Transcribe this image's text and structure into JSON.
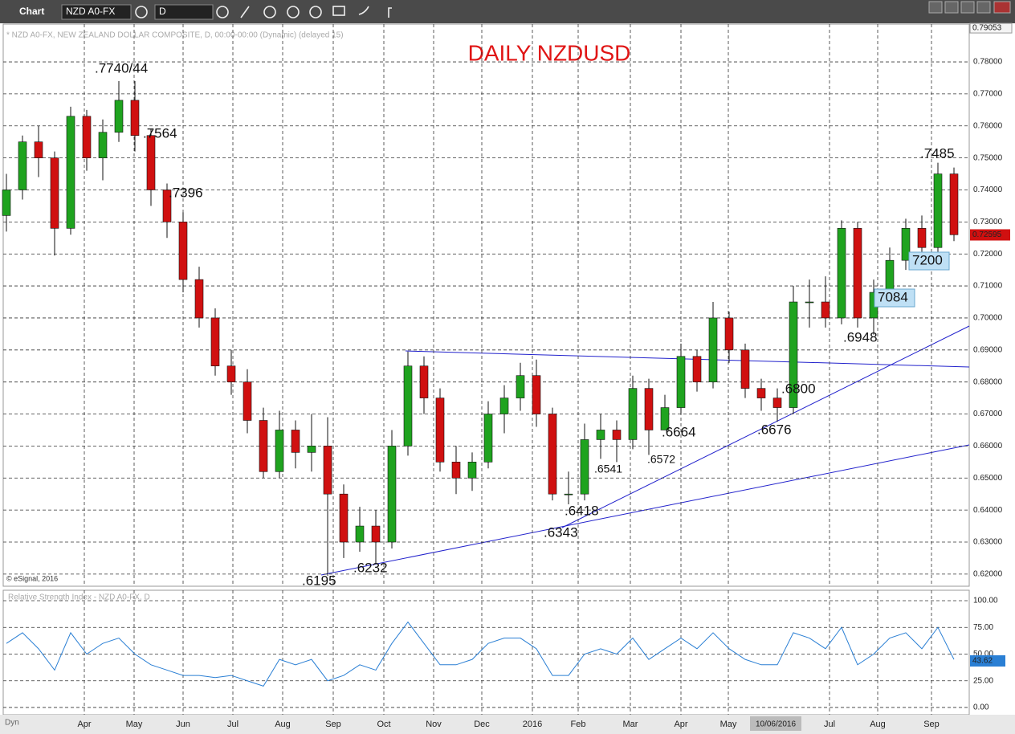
{
  "toolbar": {
    "title": "Chart",
    "symbol": "NZD A0-FX",
    "interval": "D"
  },
  "chart_data": [
    {
      "type": "candlestick",
      "title": "DAILY NZDUSD",
      "subtitle": "* NZD A0-FX, NEW ZEALAND DOLLAR COMPOSITE, D, 00:00-00:00 (Dynamic) (delayed 15)",
      "credit": "© eSignal, 2016",
      "up_color": "#1fa31f",
      "down_color": "#d01010",
      "candles": [
        [
          0.732,
          0.745,
          0.727,
          0.74
        ],
        [
          0.74,
          0.757,
          0.737,
          0.755
        ],
        [
          0.755,
          0.76,
          0.744,
          0.75
        ],
        [
          0.75,
          0.752,
          0.7195,
          0.728
        ],
        [
          0.728,
          0.766,
          0.726,
          0.763
        ],
        [
          0.763,
          0.765,
          0.746,
          0.75
        ],
        [
          0.75,
          0.762,
          0.743,
          0.758
        ],
        [
          0.758,
          0.774,
          0.755,
          0.768
        ],
        [
          0.768,
          0.774,
          0.752,
          0.757
        ],
        [
          0.757,
          0.759,
          0.735,
          0.74
        ],
        [
          0.74,
          0.742,
          0.725,
          0.73
        ],
        [
          0.73,
          0.733,
          0.708,
          0.712
        ],
        [
          0.712,
          0.716,
          0.697,
          0.7
        ],
        [
          0.7,
          0.703,
          0.682,
          0.685
        ],
        [
          0.685,
          0.69,
          0.676,
          0.68
        ],
        [
          0.68,
          0.684,
          0.664,
          0.668
        ],
        [
          0.668,
          0.672,
          0.65,
          0.652
        ],
        [
          0.652,
          0.671,
          0.65,
          0.665
        ],
        [
          0.665,
          0.668,
          0.653,
          0.658
        ],
        [
          0.658,
          0.67,
          0.652,
          0.66
        ],
        [
          0.66,
          0.669,
          0.6195,
          0.645
        ],
        [
          0.645,
          0.648,
          0.625,
          0.63
        ],
        [
          0.63,
          0.641,
          0.627,
          0.635
        ],
        [
          0.635,
          0.64,
          0.6232,
          0.63
        ],
        [
          0.63,
          0.665,
          0.628,
          0.66
        ],
        [
          0.66,
          0.6895,
          0.657,
          0.685
        ],
        [
          0.685,
          0.688,
          0.67,
          0.675
        ],
        [
          0.675,
          0.678,
          0.652,
          0.655
        ],
        [
          0.655,
          0.66,
          0.645,
          0.65
        ],
        [
          0.65,
          0.658,
          0.646,
          0.655
        ],
        [
          0.655,
          0.674,
          0.653,
          0.67
        ],
        [
          0.67,
          0.679,
          0.664,
          0.675
        ],
        [
          0.675,
          0.686,
          0.671,
          0.682
        ],
        [
          0.682,
          0.687,
          0.666,
          0.67
        ],
        [
          0.67,
          0.672,
          0.643,
          0.645
        ],
        [
          0.645,
          0.652,
          0.6418,
          0.645
        ],
        [
          0.645,
          0.667,
          0.643,
          0.662
        ],
        [
          0.662,
          0.67,
          0.656,
          0.665
        ],
        [
          0.665,
          0.668,
          0.655,
          0.662
        ],
        [
          0.662,
          0.682,
          0.659,
          0.678
        ],
        [
          0.678,
          0.681,
          0.6572,
          0.665
        ],
        [
          0.665,
          0.676,
          0.6664,
          0.672
        ],
        [
          0.672,
          0.692,
          0.67,
          0.688
        ],
        [
          0.688,
          0.69,
          0.677,
          0.68
        ],
        [
          0.68,
          0.705,
          0.678,
          0.7
        ],
        [
          0.7,
          0.702,
          0.686,
          0.69
        ],
        [
          0.69,
          0.692,
          0.675,
          0.678
        ],
        [
          0.678,
          0.681,
          0.671,
          0.675
        ],
        [
          0.675,
          0.678,
          0.6676,
          0.672
        ],
        [
          0.672,
          0.71,
          0.67,
          0.705
        ],
        [
          0.705,
          0.712,
          0.697,
          0.705
        ],
        [
          0.705,
          0.713,
          0.697,
          0.7
        ],
        [
          0.7,
          0.7305,
          0.698,
          0.728
        ],
        [
          0.728,
          0.73,
          0.697,
          0.7
        ],
        [
          0.7,
          0.712,
          0.6948,
          0.708
        ],
        [
          0.708,
          0.722,
          0.705,
          0.718
        ],
        [
          0.718,
          0.731,
          0.715,
          0.728
        ],
        [
          0.728,
          0.732,
          0.719,
          0.722
        ],
        [
          0.722,
          0.7485,
          0.72,
          0.745
        ],
        [
          0.745,
          0.747,
          0.724,
          0.726
        ]
      ],
      "ylim": [
        0.6162,
        0.7918
      ],
      "yticks": [
        {
          "value": 0.62,
          "label": "0.62000"
        },
        {
          "value": 0.63,
          "label": "0.63000"
        },
        {
          "value": 0.64,
          "label": "0.64000"
        },
        {
          "value": 0.65,
          "label": "0.65000"
        },
        {
          "value": 0.66,
          "label": "0.66000"
        },
        {
          "value": 0.67,
          "label": "0.67000"
        },
        {
          "value": 0.68,
          "label": "0.68000"
        },
        {
          "value": 0.69,
          "label": "0.69000"
        },
        {
          "value": 0.7,
          "label": "0.70000"
        },
        {
          "value": 0.71,
          "label": "0.71000"
        },
        {
          "value": 0.72,
          "label": "0.72000"
        },
        {
          "value": 0.73,
          "label": "0.73000"
        },
        {
          "value": 0.74,
          "label": "0.74000"
        },
        {
          "value": 0.75,
          "label": "0.75000"
        },
        {
          "value": 0.76,
          "label": "0.76000"
        },
        {
          "value": 0.77,
          "label": "0.77000"
        },
        {
          "value": 0.78,
          "label": "0.78000"
        }
      ],
      "top_value": 0.79053,
      "last_value": 0.72595,
      "xlim": [
        0,
        59
      ],
      "xticks": [
        {
          "value": 4.85,
          "label": "Apr"
        },
        {
          "value": 7.95,
          "label": "May"
        },
        {
          "value": 11,
          "label": "Jun"
        },
        {
          "value": 14.1,
          "label": "Jul"
        },
        {
          "value": 17.2,
          "label": "Aug"
        },
        {
          "value": 20.35,
          "label": "Sep"
        },
        {
          "value": 23.5,
          "label": "Oct"
        },
        {
          "value": 26.6,
          "label": "Nov"
        },
        {
          "value": 29.6,
          "label": "Dec"
        },
        {
          "value": 32.75,
          "label": "2016"
        },
        {
          "value": 35.6,
          "label": "Feb"
        },
        {
          "value": 38.85,
          "label": "Mar"
        },
        {
          "value": 42,
          "label": "Apr"
        },
        {
          "value": 44.95,
          "label": "May"
        },
        {
          "value": 51.25,
          "label": "Jul"
        },
        {
          "value": 54.25,
          "label": "Aug"
        },
        {
          "value": 57.6,
          "label": "Sep"
        }
      ],
      "cursor_label": "10/06/2016",
      "annotations": [
        ".7740/44",
        ".7564",
        ".7396",
        ".6195",
        ".6232",
        ".6343",
        ".6418",
        ".6541",
        ".6572",
        ".6664",
        ".6676",
        ".6800",
        ".6948",
        "7084",
        "7200",
        ".7485"
      ],
      "grid": true
    },
    {
      "type": "line",
      "title": "Relative Strength Index - NZD A0-FX, D",
      "color": "#2a7fd4",
      "values": [
        60,
        70,
        55,
        35,
        70,
        50,
        60,
        65,
        50,
        40,
        35,
        30,
        30,
        28,
        30,
        25,
        20,
        45,
        40,
        45,
        25,
        30,
        40,
        35,
        60,
        80,
        60,
        40,
        40,
        45,
        60,
        65,
        65,
        55,
        30,
        30,
        50,
        55,
        50,
        65,
        45,
        55,
        65,
        55,
        70,
        55,
        45,
        40,
        40,
        70,
        65,
        55,
        75,
        40,
        50,
        65,
        70,
        55,
        75,
        45
      ],
      "last_value": 43.62,
      "xlim": [
        0,
        59
      ],
      "ylim": [
        -6.8,
        109.8
      ],
      "yticks": [
        {
          "value": 0,
          "label": "0.00"
        },
        {
          "value": 25,
          "label": "25.00"
        },
        {
          "value": 50,
          "label": "50.00"
        },
        {
          "value": 75,
          "label": "75.00"
        },
        {
          "value": 100,
          "label": "100.00"
        }
      ],
      "grid": true
    }
  ],
  "footer": "Dyn"
}
